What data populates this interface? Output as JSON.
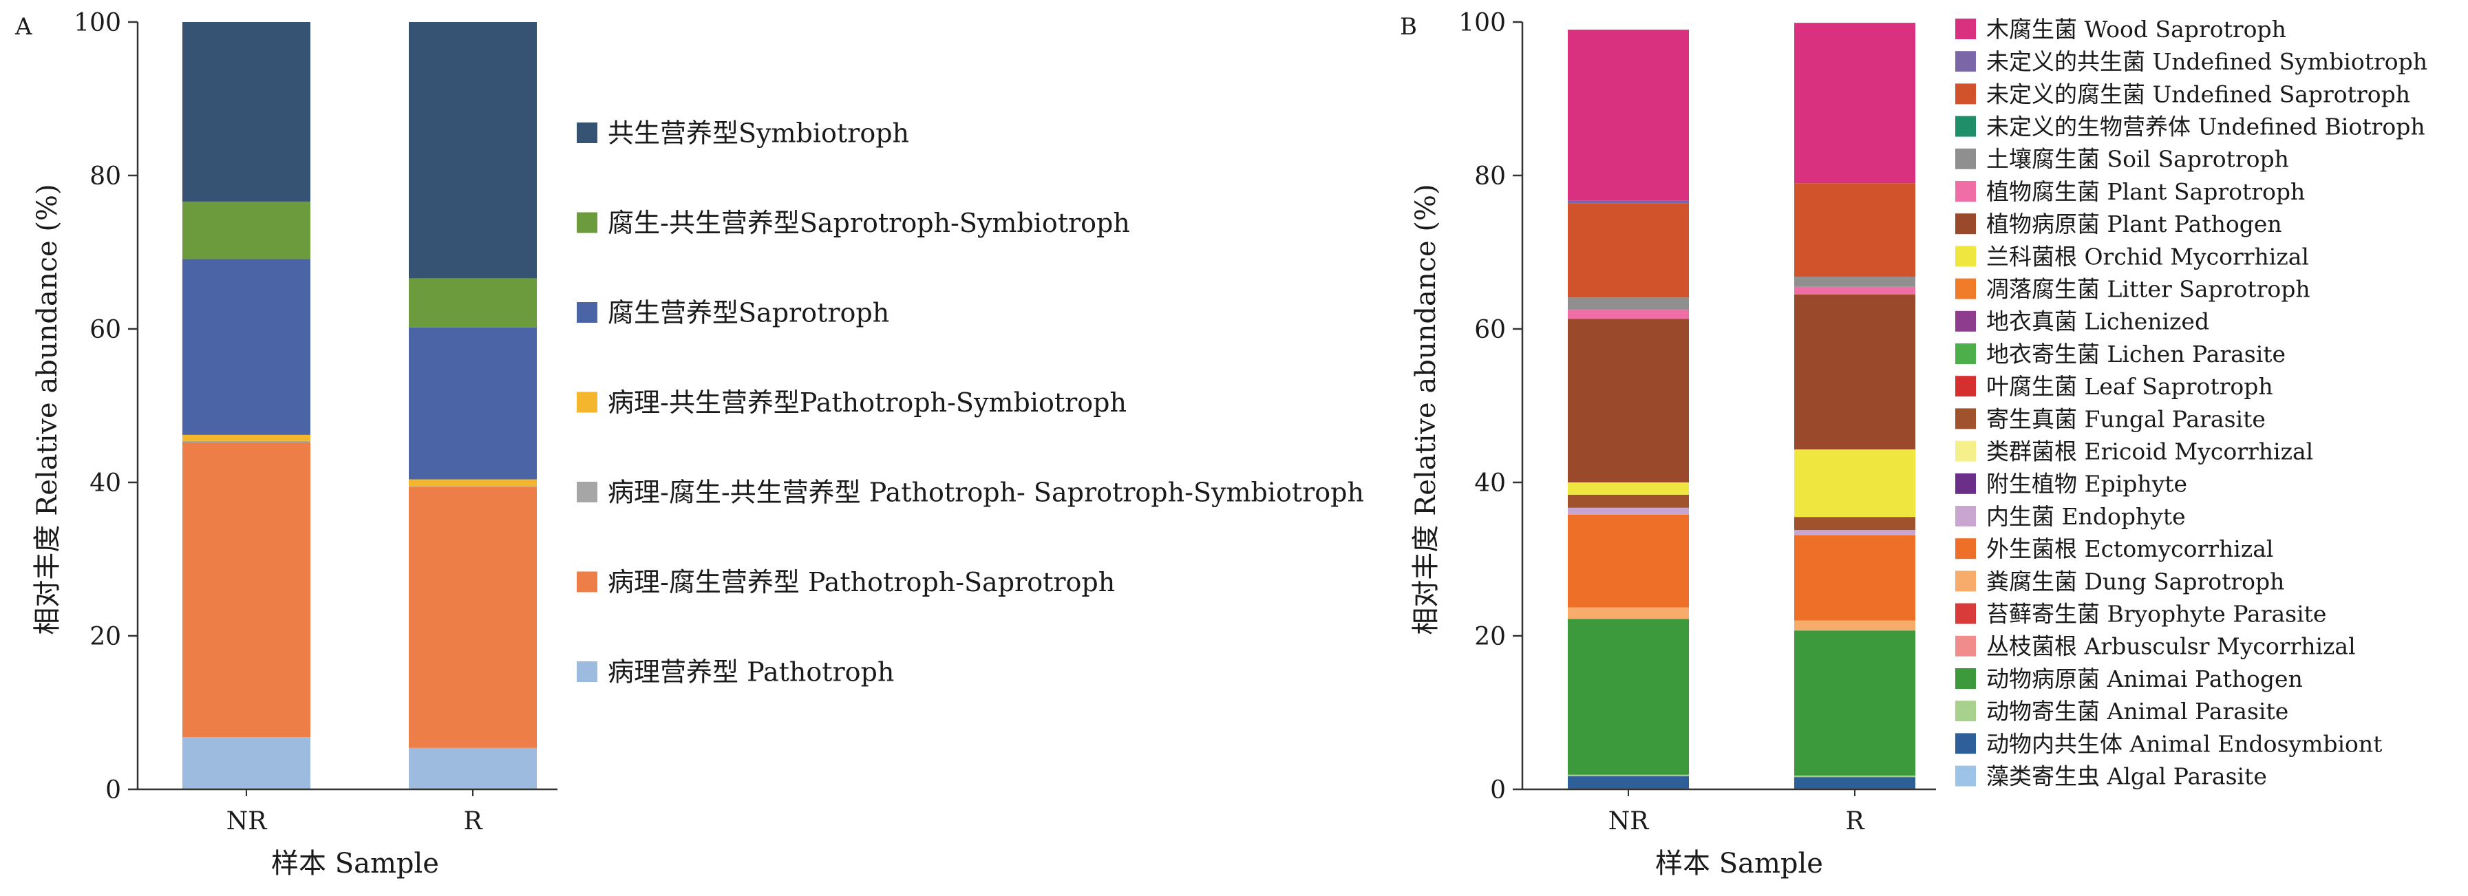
{
  "chart_data": [
    {
      "panel_label": "A",
      "type": "bar",
      "stacked": true,
      "categories": [
        "NR",
        "R"
      ],
      "xlabel": "样本  Sample",
      "ylabel": "相对丰度  Relative abundance (%)",
      "ylim": [
        0,
        100
      ],
      "yticks": [
        "0",
        "20",
        "40",
        "60",
        "80",
        "100"
      ],
      "grid": false,
      "legend_position": "right",
      "series": [
        {
          "name": "病理营养型 Pathotroph",
          "color": "#9dbbdf",
          "values": [
            6.8,
            5.4
          ]
        },
        {
          "name": "病理-腐生营养型 Pathotroph-Saprotroph",
          "color": "#ee7e47",
          "values": [
            38.4,
            34.0
          ]
        },
        {
          "name": "病理-腐生-共生营养型 Pathotroph- Saprotroph-Symbiotroph",
          "color": "#a6a6a6",
          "values": [
            0.2,
            0.1
          ]
        },
        {
          "name": "病理-共生营养型Pathotroph-Symbiotroph",
          "color": "#f3b62c",
          "values": [
            0.8,
            0.9
          ]
        },
        {
          "name": "腐生营养型Saprotroph",
          "color": "#4b64a6",
          "values": [
            22.9,
            19.8
          ]
        },
        {
          "name": "腐生-共生营养型Saprotroph-Symbiotroph",
          "color": "#6b9b3c",
          "values": [
            7.5,
            6.4
          ]
        },
        {
          "name": "共生营养型Symbiotroph",
          "color": "#375373",
          "values": [
            23.4,
            33.4
          ]
        }
      ],
      "legend_order": [
        6,
        5,
        4,
        3,
        2,
        1,
        0
      ]
    },
    {
      "panel_label": "B",
      "type": "bar",
      "stacked": true,
      "categories": [
        "NR",
        "R"
      ],
      "xlabel": "样本  Sample",
      "ylabel": "相对丰度  Relative abundance (%)",
      "ylim": [
        0,
        100
      ],
      "yticks": [
        "0",
        "20",
        "40",
        "60",
        "80",
        "100"
      ],
      "grid": false,
      "legend_position": "right",
      "series": [
        {
          "name": "藻类寄生虫  Algal Parasite",
          "color": "#9dc3e6",
          "values": [
            0.1,
            0.1
          ]
        },
        {
          "name": "动物内共生体 Animal Endosymbiont",
          "color": "#2f5f98",
          "values": [
            1.6,
            1.5
          ]
        },
        {
          "name": "动物寄生菌  Animal Parasite",
          "color": "#a9d18e",
          "values": [
            0.2,
            0.2
          ]
        },
        {
          "name": "动物病原菌 Animai Pathogen",
          "color": "#3c9a3c",
          "values": [
            20.3,
            18.9
          ]
        },
        {
          "name": "丛枝菌根 Arbusculsr Mycorrhizal",
          "color": "#f08c8c",
          "values": [
            0.0,
            0.0
          ]
        },
        {
          "name": "苔藓寄生菌 Bryophyte Parasite",
          "color": "#d93a3a",
          "values": [
            0.0,
            0.0
          ]
        },
        {
          "name": "粪腐生菌 Dung Saprotroph",
          "color": "#f7ac6b",
          "values": [
            1.5,
            1.3
          ]
        },
        {
          "name": "外生菌根 Ectomycorrhizal",
          "color": "#ee7028",
          "values": [
            12.1,
            11.1
          ]
        },
        {
          "name": "内生菌 Endophyte",
          "color": "#c9a6cf",
          "values": [
            0.9,
            0.7
          ]
        },
        {
          "name": "附生植物  Epiphyte",
          "color": "#6b2f8a",
          "values": [
            0.0,
            0.0
          ]
        },
        {
          "name": "类群菌根  Ericoid Mycorrhizal",
          "color": "#f5f08a",
          "values": [
            0.0,
            0.0
          ]
        },
        {
          "name": "寄生真菌  Fungal Parasite",
          "color": "#a0522d",
          "values": [
            1.7,
            1.7
          ]
        },
        {
          "name": "叶腐生菌 Leaf Saprotroph",
          "color": "#d62f2f",
          "values": [
            0.0,
            0.0
          ]
        },
        {
          "name": "地衣寄生菌  Lichen Parasite",
          "color": "#4daf4a",
          "values": [
            0.0,
            0.0
          ]
        },
        {
          "name": "地衣真菌  Lichenized",
          "color": "#8e3c8e",
          "values": [
            0.0,
            0.0
          ]
        },
        {
          "name": "凋落腐生菌  Litter Saprotroph",
          "color": "#f07c2a",
          "values": [
            0.0,
            0.0
          ]
        },
        {
          "name": "兰科菌根  Orchid Mycorrhizal",
          "color": "#efe63f",
          "values": [
            1.6,
            8.8
          ]
        },
        {
          "name": "植物病原菌  Plant Pathogen",
          "color": "#9a4a2a",
          "values": [
            21.3,
            20.2
          ]
        },
        {
          "name": "植物腐生菌  Plant Saprotroph",
          "color": "#f06ea6",
          "values": [
            1.2,
            1.0
          ]
        },
        {
          "name": "土壤腐生菌  Soil Saprotroph",
          "color": "#8f8f8f",
          "values": [
            1.6,
            1.3
          ]
        },
        {
          "name": "未定义的生物营养体  Undefined Biotroph",
          "color": "#1f8f6a",
          "values": [
            0.0,
            0.0
          ]
        },
        {
          "name": "未定义的腐生菌 Undefined Saprotroph",
          "color": "#d1532b",
          "values": [
            12.3,
            12.2
          ]
        },
        {
          "name": "未定义的共生菌  Undefined Symbiotroph",
          "color": "#7b66a8",
          "values": [
            0.3,
            0.0
          ]
        },
        {
          "name": "木腐生菌  Wood Saprotroph",
          "color": "#d9307f",
          "values": [
            22.3,
            20.9
          ]
        }
      ],
      "legend_order": [
        23,
        22,
        21,
        20,
        19,
        18,
        17,
        16,
        15,
        14,
        13,
        12,
        11,
        10,
        9,
        8,
        7,
        6,
        5,
        4,
        3,
        2,
        1,
        0
      ]
    }
  ]
}
